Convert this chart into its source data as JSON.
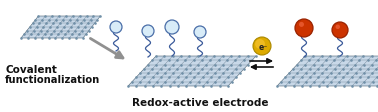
{
  "background_color": "#ffffff",
  "text_covalent_line1": "Covalent",
  "text_covalent_line2": "functionalization",
  "text_redox": "Redox-active electrode",
  "text_fontsize": 7.5,
  "text_redox_fontsize": 7.5,
  "graphene_color_light": "#c8d8e8",
  "graphene_color_mid": "#aabccc",
  "graphene_color_dark": "#7090a8",
  "graphene_line_color": "#4a6070",
  "arrow_color": "#909090",
  "molecule_circle_color_oxidized": "#d8ecf8",
  "molecule_circle_edge_oxidized": "#4a6ea8",
  "molecule_circle_color_reduced": "#cc3300",
  "molecule_circle_edge_reduced": "#992200",
  "electron_circle_color": "#ddaa00",
  "electron_circle_edge": "#aa8800",
  "electron_text": "e⁻",
  "double_arrow_color": "#111111",
  "linker_color": "#3a5a9a",
  "fig_width": 3.78,
  "fig_height": 1.13,
  "dpi": 100
}
